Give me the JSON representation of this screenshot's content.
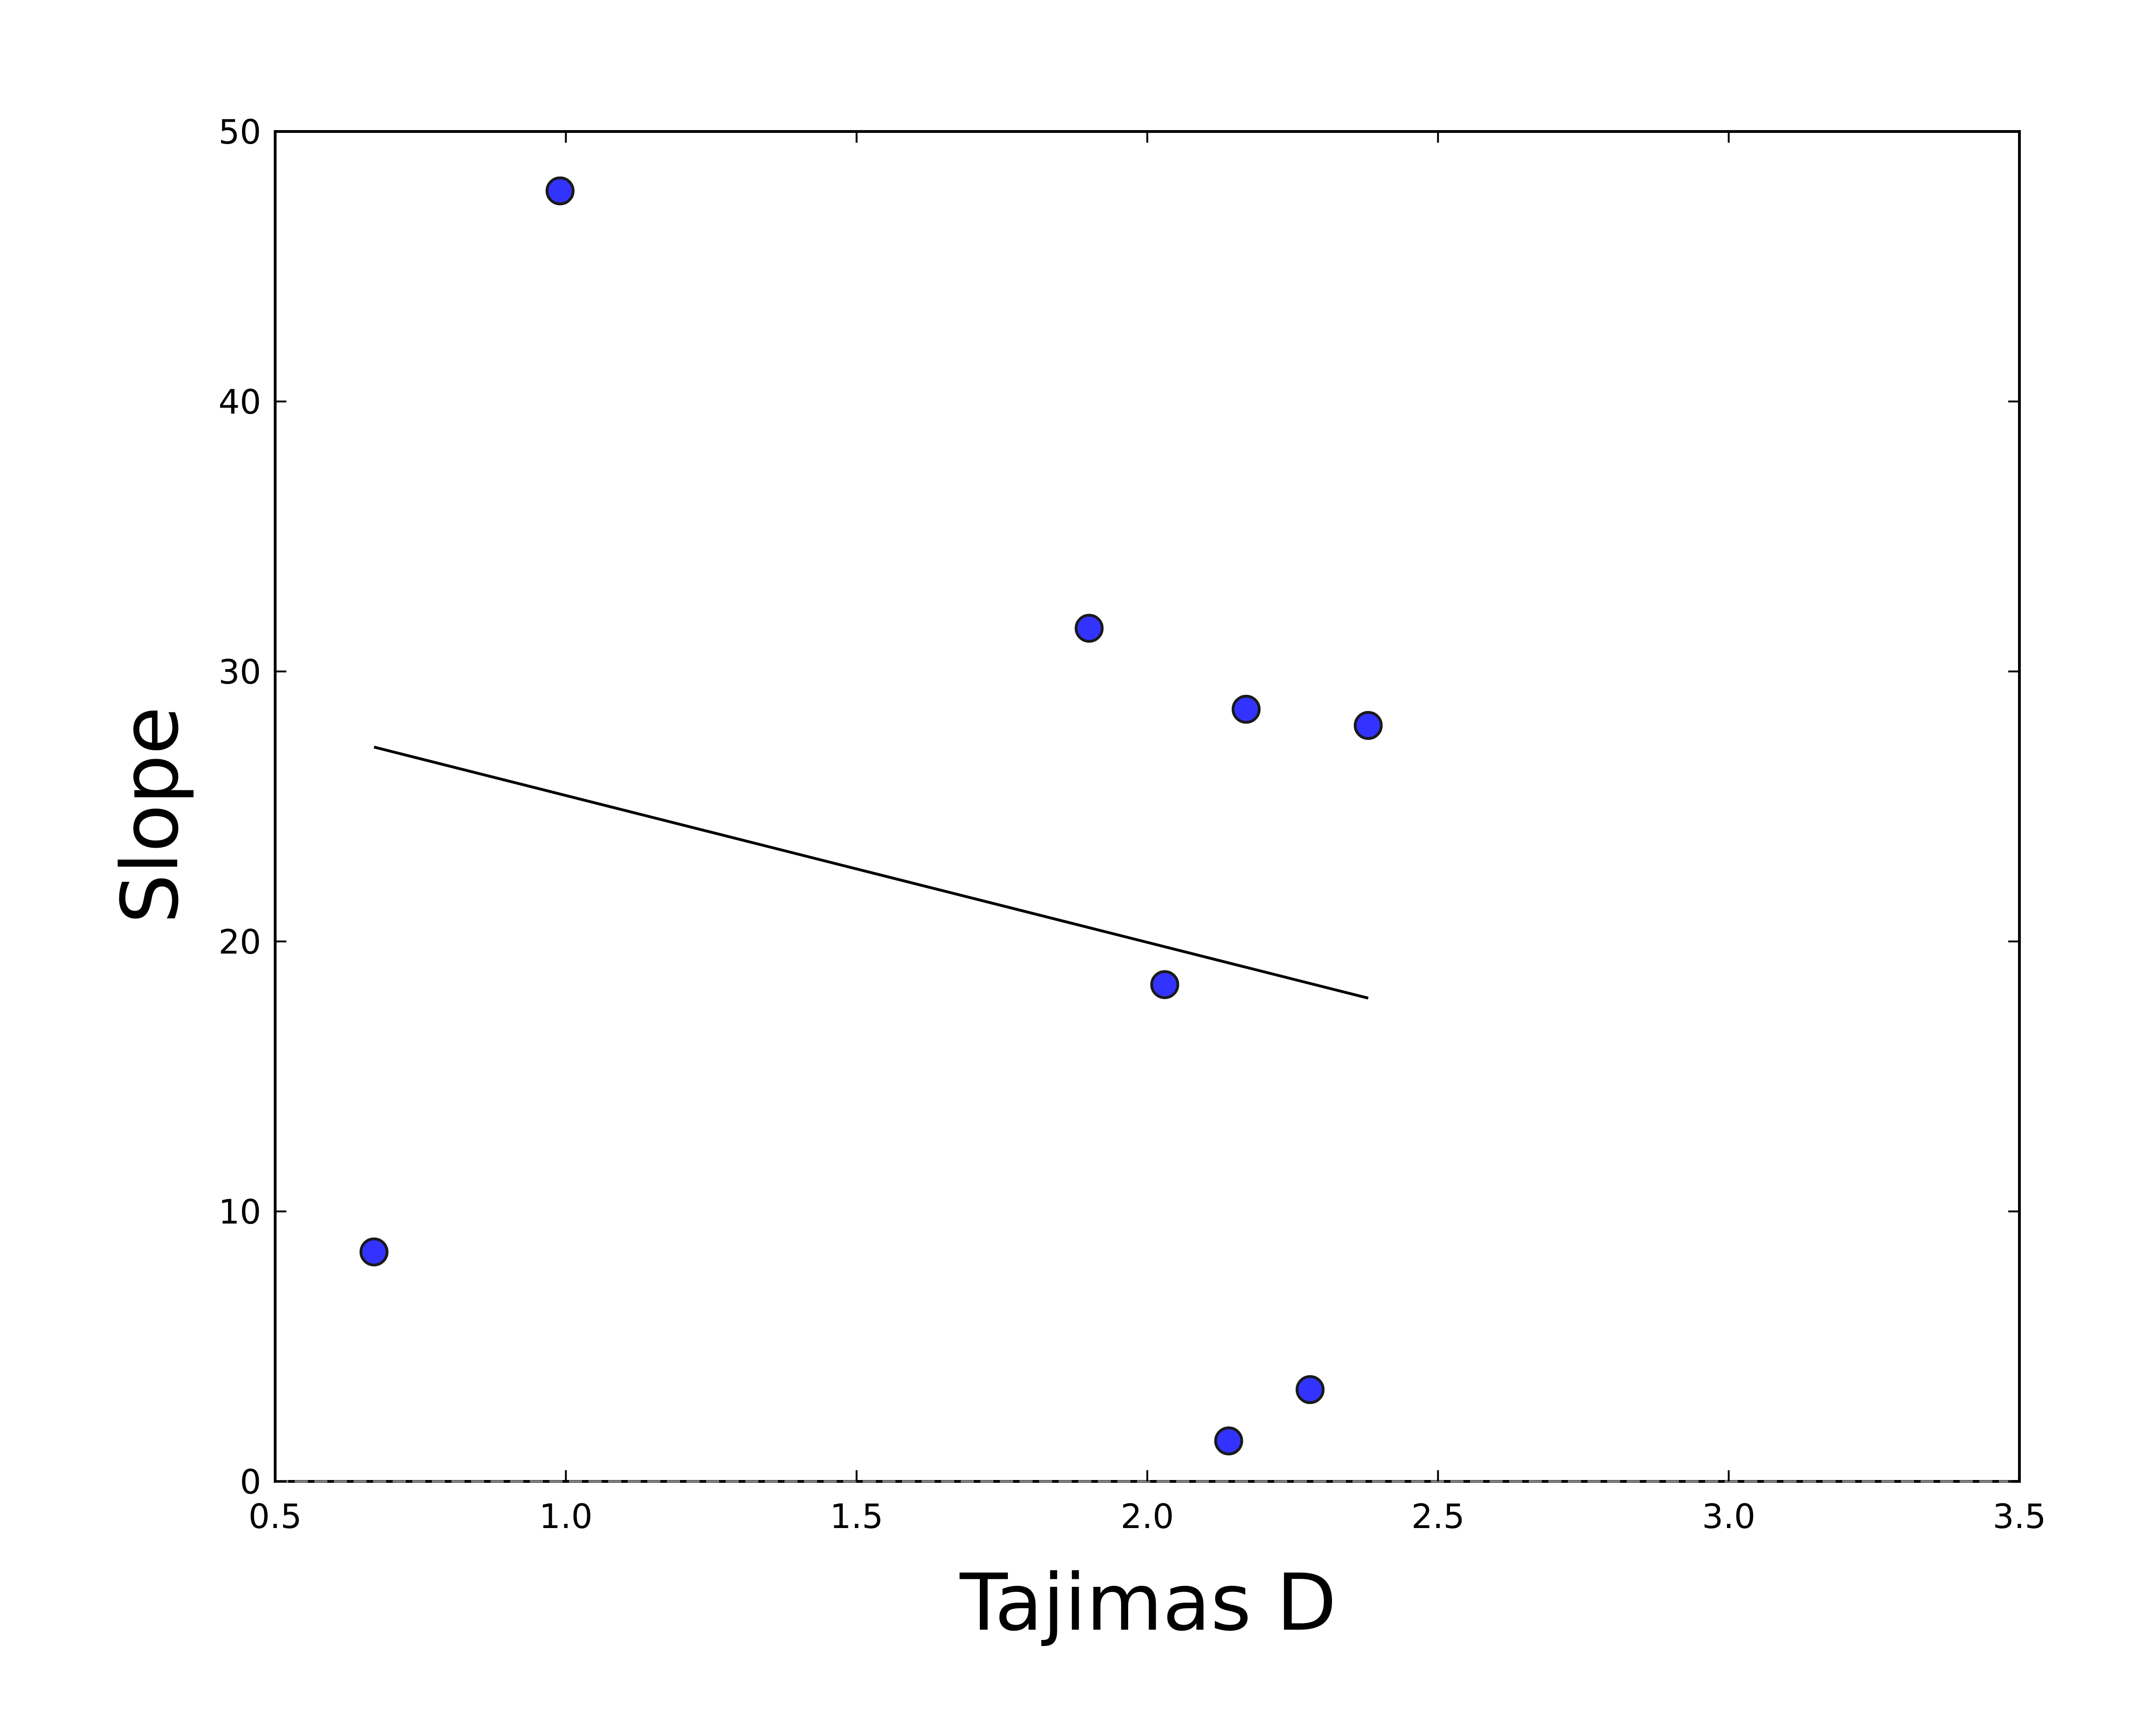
{
  "chart_data": {
    "type": "scatter",
    "title": "",
    "xlabel": "Tajimas D",
    "ylabel": "Slope",
    "xlim": [
      0.5,
      3.5
    ],
    "ylim": [
      0,
      50
    ],
    "xticks": [
      "0.5",
      "1.0",
      "1.5",
      "2.0",
      "2.5",
      "3.0",
      "3.5"
    ],
    "yticks": [
      "0",
      "10",
      "20",
      "30",
      "40",
      "50"
    ],
    "grid": false,
    "legend": "none",
    "series": [
      {
        "type": "scatter",
        "color": "#3333ff",
        "edgecolor": "#1a1a1a",
        "x": [
          0.67,
          0.99,
          1.9,
          2.03,
          2.14,
          2.17,
          2.28,
          2.38
        ],
        "y": [
          8.5,
          47.8,
          31.6,
          18.4,
          1.5,
          28.6,
          3.4,
          28.0
        ]
      },
      {
        "type": "line",
        "color": "#000000",
        "x": [
          0.67,
          2.38
        ],
        "y": [
          27.2,
          17.9
        ]
      },
      {
        "type": "line",
        "color": "#7f7f7f",
        "style": "dashed",
        "x": [
          0.5,
          3.5
        ],
        "y": [
          0,
          0
        ]
      }
    ]
  }
}
